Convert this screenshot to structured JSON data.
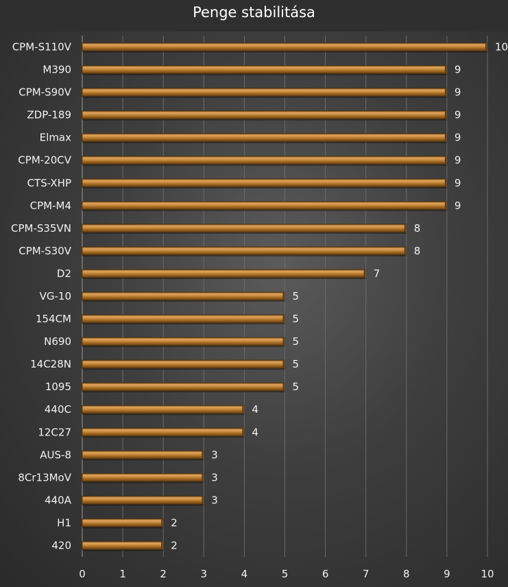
{
  "chart_data": {
    "type": "bar",
    "orientation": "horizontal",
    "title": "Penge stabilitása",
    "categories": [
      "CPM-S110V",
      "M390",
      "CPM-S90V",
      "ZDP-189",
      "Elmax",
      "CPM-20CV",
      "CTS-XHP",
      "CPM-M4",
      "CPM-S35VN",
      "CPM-S30V",
      "D2",
      "VG-10",
      "154CM",
      "N690",
      "14C28N",
      "1095",
      "440C",
      "12C27",
      "AUS-8",
      "8Cr13MoV",
      "440A",
      "H1",
      "420"
    ],
    "values": [
      10,
      9,
      9,
      9,
      9,
      9,
      9,
      9,
      8,
      8,
      7,
      5,
      5,
      5,
      5,
      5,
      4,
      4,
      3,
      3,
      3,
      2,
      2
    ],
    "xlim": [
      0,
      10
    ],
    "x_ticks": [
      0,
      1,
      2,
      3,
      4,
      5,
      6,
      7,
      8,
      9,
      10
    ],
    "grid": true,
    "legend": "none",
    "data_labels": true,
    "colors": {
      "bar": "#b97a2c",
      "bar_highlight": "#e2a761",
      "bar_shadow": "#6b4414",
      "background": "#3e3e3e",
      "title_background": "#2f2f2f",
      "text": "#f2f2f2"
    }
  }
}
